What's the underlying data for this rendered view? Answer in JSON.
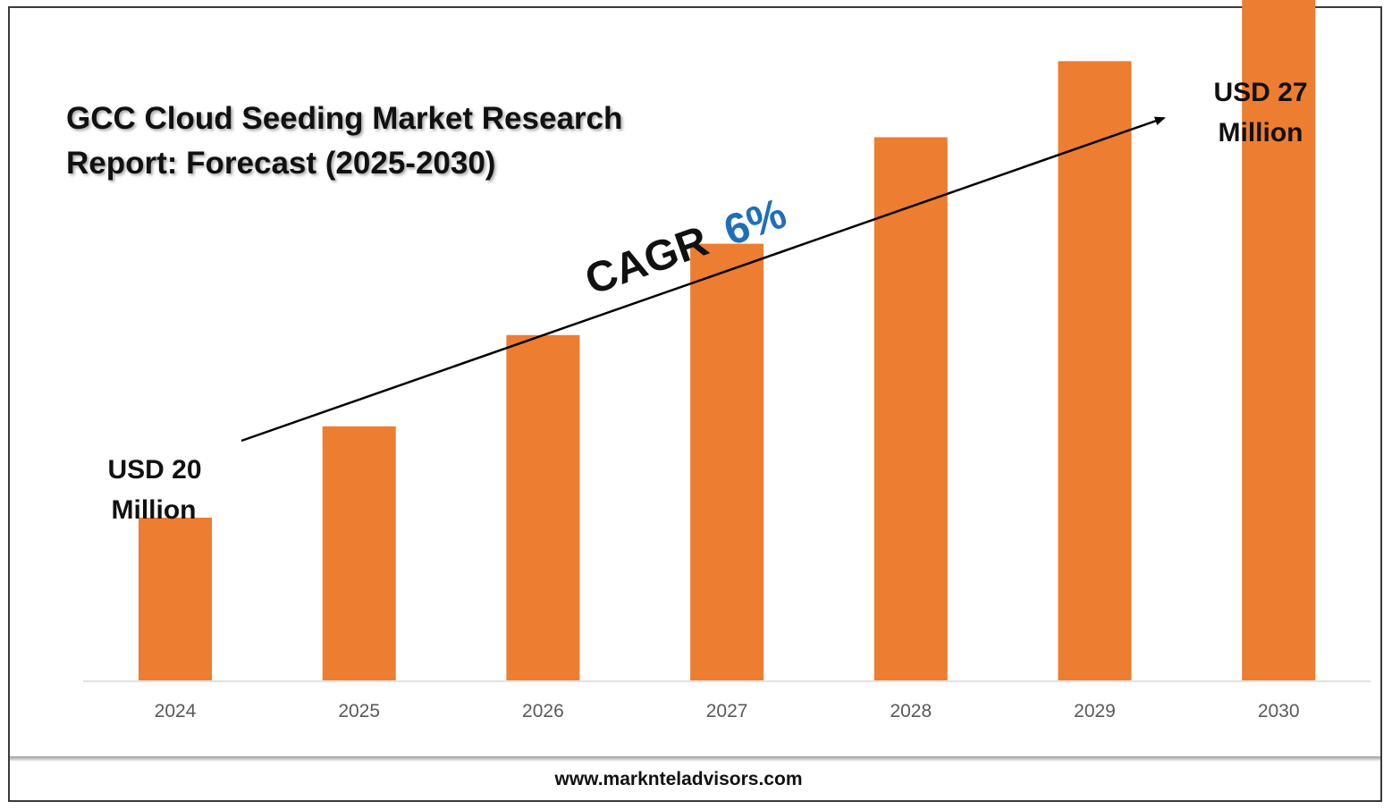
{
  "title": "GCC Cloud Seeding Market Research Report: Forecast (2025-2030)",
  "colors": {
    "bar": "#ED7D31",
    "accent": "#1F6FB8",
    "axis": "#D9D9D9",
    "tick_text": "#595959"
  },
  "annotations": {
    "start_value_line1": "USD 20",
    "start_value_line2": "Million",
    "end_value_line1": "USD 27",
    "end_value_line2": "Million",
    "cagr_label": "CAGR",
    "cagr_value": "6%"
  },
  "footer": {
    "website": "www.marknteladvisors.com"
  },
  "chart_data": {
    "type": "bar",
    "categories": [
      "2024",
      "2025",
      "2026",
      "2027",
      "2028",
      "2029",
      "2030"
    ],
    "values": [
      20,
      21.2,
      22.4,
      23.6,
      25.0,
      26.0,
      27.0
    ],
    "title": "GCC Cloud Seeding Market Research Report: Forecast (2025-2030)",
    "xlabel": "",
    "ylabel": "",
    "grid": false,
    "legend": "none"
  }
}
